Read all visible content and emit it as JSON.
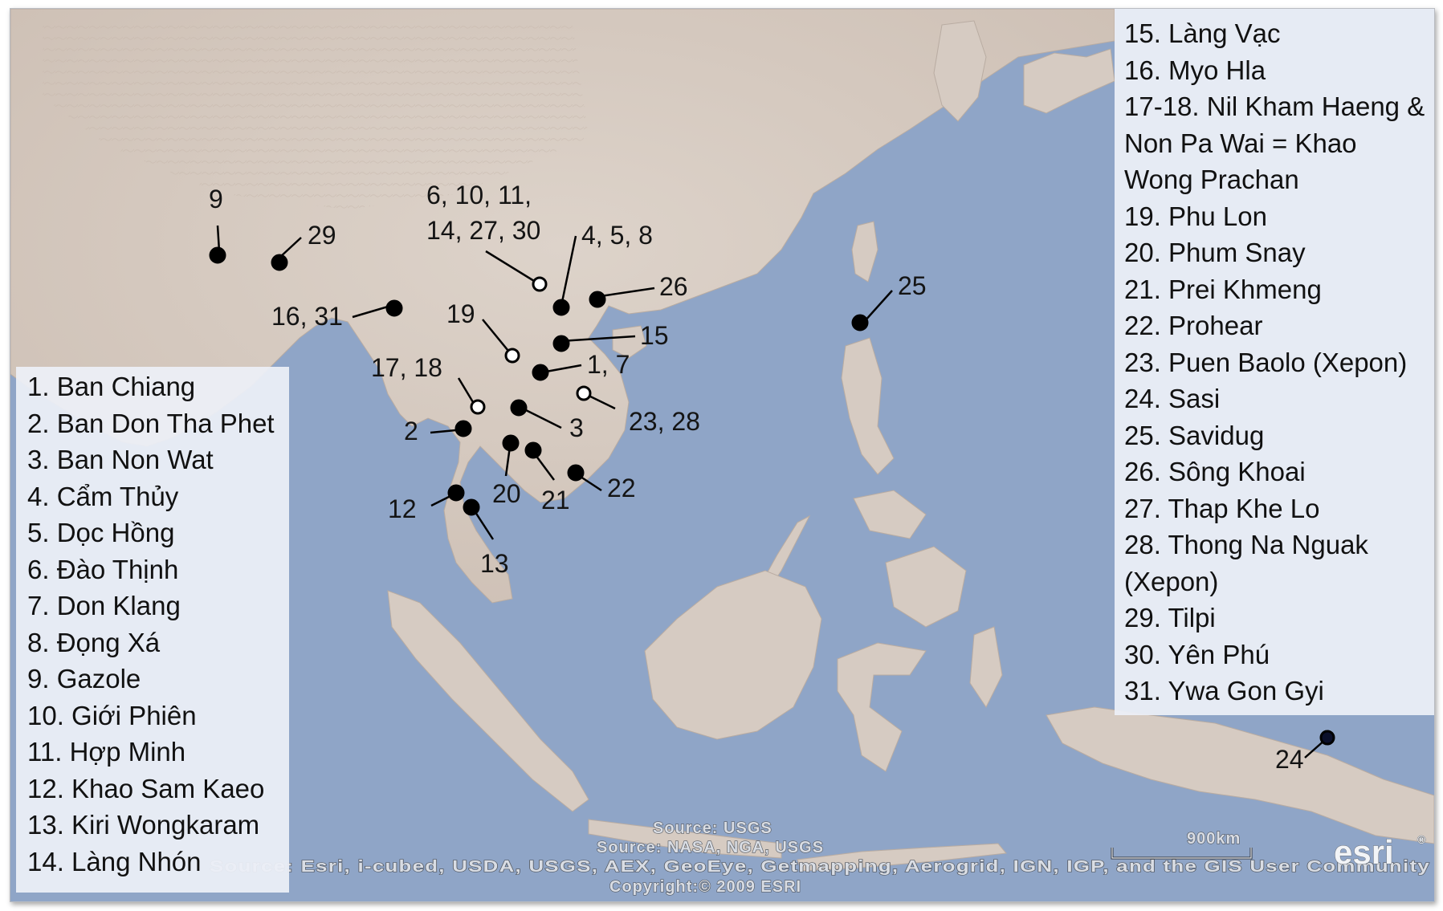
{
  "map": {
    "ocean_color": "#8fa5c7",
    "land_color": "#d8cdc4",
    "scale_label": "900km",
    "credits": [
      "Source: USGS",
      "Source: NASA, NGA, USGS",
      "Source: Esri, i-cubed, USDA, USGS, AEX, GeoEye, Getmapping, Aerogrid, IGN, IGP, and the GIS User Community",
      "Copyright:© 2009 ESRI"
    ],
    "esri_logo": "esri"
  },
  "site_labels": [
    "9",
    "29",
    "6, 10, 11,",
    "14, 27, 30",
    "4, 5, 8",
    "26",
    "25",
    "16, 31",
    "19",
    "15",
    "1, 7",
    "17, 18",
    "23, 28",
    "3",
    "2",
    "20",
    "21",
    "22",
    "12",
    "13",
    "24"
  ],
  "markers": [
    {
      "id": "9",
      "style": "filled"
    },
    {
      "id": "29",
      "style": "filled"
    },
    {
      "id": "6, 10, 11, 14, 27, 30",
      "style": "open"
    },
    {
      "id": "4, 5, 8",
      "style": "filled"
    },
    {
      "id": "26",
      "style": "filled"
    },
    {
      "id": "25",
      "style": "filled"
    },
    {
      "id": "16, 31",
      "style": "filled"
    },
    {
      "id": "19",
      "style": "open"
    },
    {
      "id": "15",
      "style": "filled"
    },
    {
      "id": "1, 7",
      "style": "filled"
    },
    {
      "id": "17, 18",
      "style": "open"
    },
    {
      "id": "23, 28",
      "style": "open"
    },
    {
      "id": "3",
      "style": "filled"
    },
    {
      "id": "2",
      "style": "filled"
    },
    {
      "id": "20",
      "style": "filled"
    },
    {
      "id": "21",
      "style": "filled"
    },
    {
      "id": "22",
      "style": "filled"
    },
    {
      "id": "12",
      "style": "filled"
    },
    {
      "id": "13",
      "style": "filled"
    },
    {
      "id": "24",
      "style": "filled"
    }
  ],
  "legend_left": [
    "1. Ban Chiang",
    "2. Ban Don Tha Phet",
    "3. Ban Non Wat",
    "4. Cẩm Thủy",
    "5. Dọc Hồng",
    "6. Đào Thịnh",
    "7. Don Klang",
    "8. Đọng Xá",
    "9. Gazole",
    "10. Giới Phiên",
    "11. Hợp Minh",
    "12. Khao Sam Kaeo",
    "13. Kiri Wongkaram",
    "14. Làng Nhón"
  ],
  "legend_right": [
    "15. Làng Vạc",
    "16. Myo Hla",
    "17-18. Nil Kham Haeng & Non Pa Wai = Khao Wong Prachan",
    "19. Phu Lon",
    "20. Phum Snay",
    "21. Prei Khmeng",
    "22. Prohear",
    "23. Puen Baolo (Xepon)",
    "24. Sasi",
    "25. Savidug",
    "26. Sông Khoai",
    "27. Thap Khe Lo",
    "28. Thong Na Nguak (Xepon)",
    "29. Tilpi",
    "30. Yên Phú",
    "31. Ywa Gon Gyi"
  ]
}
